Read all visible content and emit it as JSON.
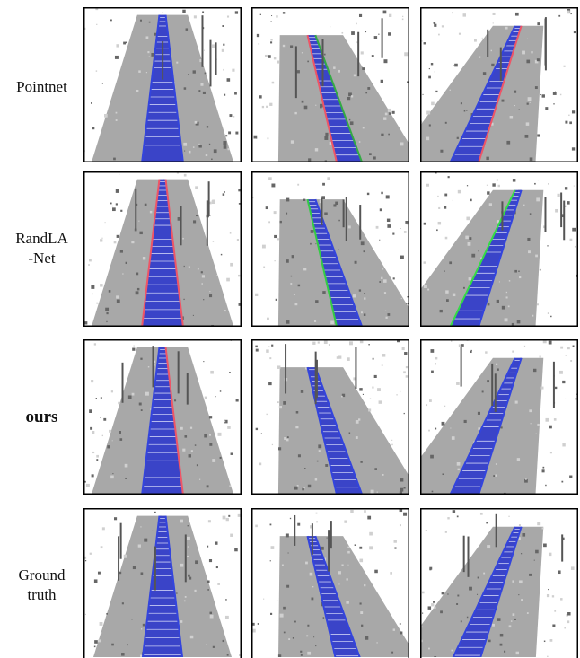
{
  "rows": [
    {
      "label": [
        "Pointnet"
      ]
    },
    {
      "label": [
        "RandLA",
        "-Net"
      ]
    },
    {
      "label": [
        "ours"
      ]
    },
    {
      "label": [
        "Ground",
        "truth"
      ]
    }
  ]
}
